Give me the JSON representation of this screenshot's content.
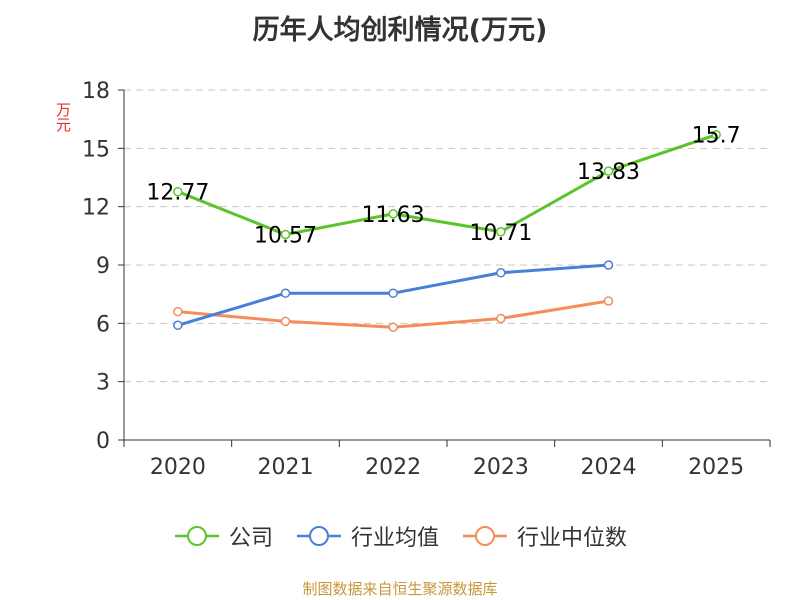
{
  "chart_data": {
    "type": "line",
    "title": "历年人均创利情况(万元)",
    "ylabel": "万元",
    "xlabel": "",
    "categories": [
      "2020",
      "2021",
      "2022",
      "2023",
      "2024",
      "2025"
    ],
    "ylim": [
      0,
      18
    ],
    "yticks": [
      0,
      3,
      6,
      9,
      12,
      15,
      18
    ],
    "grid": true,
    "legend_position": "bottom",
    "series": [
      {
        "name": "公司",
        "color": "#5cc42b",
        "values": [
          12.77,
          10.57,
          11.63,
          10.71,
          13.83,
          15.7
        ],
        "labels": [
          "12.77",
          "10.57",
          "11.63",
          "10.71",
          "13.83",
          "15.7"
        ]
      },
      {
        "name": "行业均值",
        "color": "#4a7fd9",
        "values": [
          5.9,
          7.55,
          7.55,
          8.6,
          9.0,
          null
        ]
      },
      {
        "name": "行业中位数",
        "color": "#f28e5b",
        "values": [
          6.6,
          6.1,
          5.8,
          6.25,
          7.15,
          null
        ]
      }
    ]
  },
  "footer": {
    "source": "制图数据来自恒生聚源数据库"
  }
}
